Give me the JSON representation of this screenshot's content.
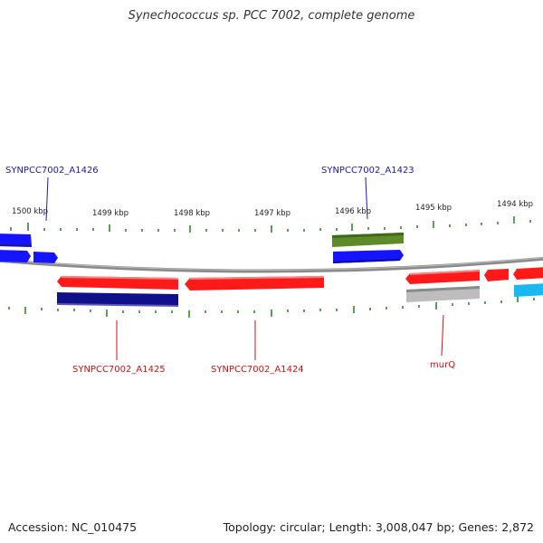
{
  "title": "Synechococcus sp. PCC 7002, complete genome",
  "footer": {
    "accession": "Accession: NC_010475",
    "summary": "Topology: circular; Length: 3,008,047 bp; Genes: 2,872"
  },
  "colors": {
    "backbone": "#8a8a8a",
    "tick": "#2e8b2e",
    "forward_gene": "#1414ff",
    "reverse_gene": "#ff1a1a",
    "cds_dark": "#10108a",
    "rna_olive": "#5f8a2a",
    "pseudo_grey": "#bdbdbd",
    "cyan_feature": "#1ab8f0",
    "label_blue": "#1a1aaa",
    "label_red": "#cc1111"
  },
  "scale": {
    "labels": [
      "1500 kbp",
      "1499 kbp",
      "1498 kbp",
      "1497 kbp",
      "1496 kbp",
      "1495 kbp",
      "1494 kbp"
    ]
  },
  "genes": [
    {
      "id": "A1426",
      "label": "SYNPCC7002_A1426",
      "strand": "forward"
    },
    {
      "id": "A1425",
      "label": "SYNPCC7002_A1425",
      "strand": "reverse"
    },
    {
      "id": "A1424",
      "label": "SYNPCC7002_A1424",
      "strand": "reverse"
    },
    {
      "id": "A1423",
      "label": "SYNPCC7002_A1423",
      "strand": "forward"
    },
    {
      "id": "murQ",
      "label": "murQ",
      "strand": "reverse"
    }
  ]
}
